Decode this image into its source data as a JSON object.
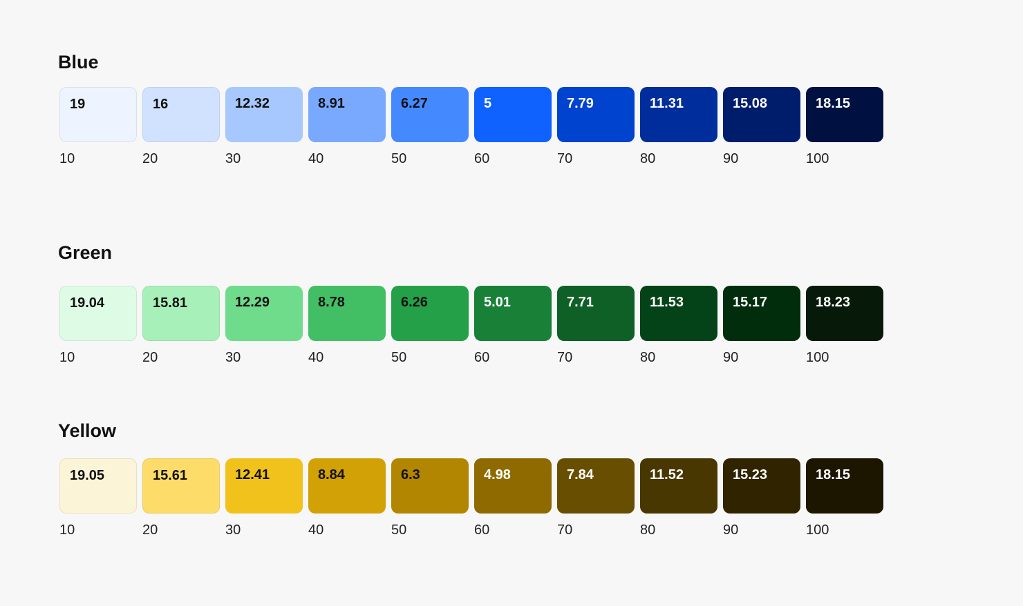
{
  "palettes": [
    {
      "name": "Blue",
      "swatches": [
        {
          "step": "10",
          "contrast": "19",
          "color": "#edf4ff",
          "text_color": "#111111"
        },
        {
          "step": "20",
          "contrast": "16",
          "color": "#d0e2ff",
          "text_color": "#111111"
        },
        {
          "step": "30",
          "contrast": "12.32",
          "color": "#a6c8ff",
          "text_color": "#111111"
        },
        {
          "step": "40",
          "contrast": "8.91",
          "color": "#78a9ff",
          "text_color": "#111111"
        },
        {
          "step": "50",
          "contrast": "6.27",
          "color": "#4589ff",
          "text_color": "#111111"
        },
        {
          "step": "60",
          "contrast": "5",
          "color": "#0f62fe",
          "text_color": "#ffffff"
        },
        {
          "step": "70",
          "contrast": "7.79",
          "color": "#0043ce",
          "text_color": "#ffffff"
        },
        {
          "step": "80",
          "contrast": "11.31",
          "color": "#002d9c",
          "text_color": "#ffffff"
        },
        {
          "step": "90",
          "contrast": "15.08",
          "color": "#001d6c",
          "text_color": "#ffffff"
        },
        {
          "step": "100",
          "contrast": "18.15",
          "color": "#001141",
          "text_color": "#ffffff"
        }
      ]
    },
    {
      "name": "Green",
      "swatches": [
        {
          "step": "10",
          "contrast": "19.04",
          "color": "#defbe6",
          "text_color": "#111111"
        },
        {
          "step": "20",
          "contrast": "15.81",
          "color": "#a7f0ba",
          "text_color": "#111111"
        },
        {
          "step": "30",
          "contrast": "12.29",
          "color": "#6fdc8c",
          "text_color": "#111111"
        },
        {
          "step": "40",
          "contrast": "8.78",
          "color": "#42be65",
          "text_color": "#111111"
        },
        {
          "step": "50",
          "contrast": "6.26",
          "color": "#24a148",
          "text_color": "#111111"
        },
        {
          "step": "60",
          "contrast": "5.01",
          "color": "#198038",
          "text_color": "#ffffff"
        },
        {
          "step": "70",
          "contrast": "7.71",
          "color": "#0e6027",
          "text_color": "#ffffff"
        },
        {
          "step": "80",
          "contrast": "11.53",
          "color": "#044317",
          "text_color": "#ffffff"
        },
        {
          "step": "90",
          "contrast": "15.17",
          "color": "#022d0d",
          "text_color": "#ffffff"
        },
        {
          "step": "100",
          "contrast": "18.23",
          "color": "#071908",
          "text_color": "#ffffff"
        }
      ]
    },
    {
      "name": "Yellow",
      "swatches": [
        {
          "step": "10",
          "contrast": "19.05",
          "color": "#fcf4d6",
          "text_color": "#111111"
        },
        {
          "step": "20",
          "contrast": "15.61",
          "color": "#fddc69",
          "text_color": "#111111"
        },
        {
          "step": "30",
          "contrast": "12.41",
          "color": "#f1c21b",
          "text_color": "#111111"
        },
        {
          "step": "40",
          "contrast": "8.84",
          "color": "#d2a106",
          "text_color": "#111111"
        },
        {
          "step": "50",
          "contrast": "6.3",
          "color": "#b28600",
          "text_color": "#111111"
        },
        {
          "step": "60",
          "contrast": "4.98",
          "color": "#8e6a00",
          "text_color": "#ffffff"
        },
        {
          "step": "70",
          "contrast": "7.84",
          "color": "#684e00",
          "text_color": "#ffffff"
        },
        {
          "step": "80",
          "contrast": "11.52",
          "color": "#483700",
          "text_color": "#ffffff"
        },
        {
          "step": "90",
          "contrast": "15.23",
          "color": "#302400",
          "text_color": "#ffffff"
        },
        {
          "step": "100",
          "contrast": "18.15",
          "color": "#1c1500",
          "text_color": "#ffffff"
        }
      ]
    }
  ]
}
